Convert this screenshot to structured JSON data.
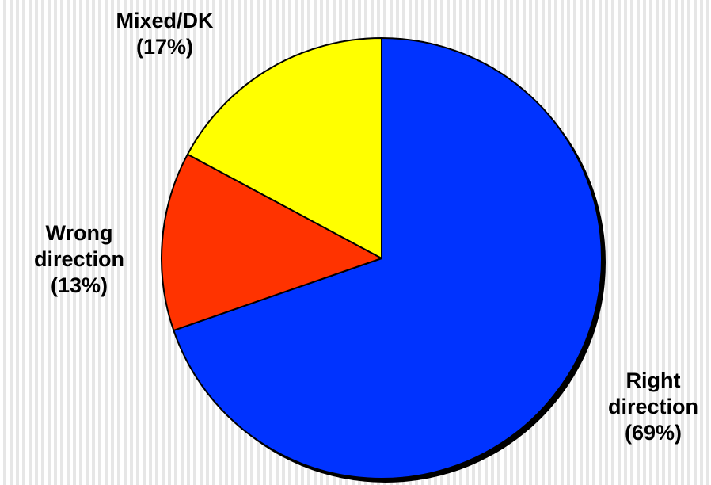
{
  "chart_data": {
    "type": "pie",
    "slices": [
      {
        "label_line1": "Right",
        "label_line2": "direction",
        "pct_text": "(69%)",
        "value": 69,
        "color": "#0033ff"
      },
      {
        "label_line1": "Wrong",
        "label_line2": "direction",
        "pct_text": "(13%)",
        "value": 13,
        "color": "#ff3300"
      },
      {
        "label_line1": "Mixed/DK",
        "label_line2": "",
        "pct_text": "(17%)",
        "value": 17,
        "color": "#ffff00"
      }
    ],
    "start_position": "12 o'clock",
    "direction": "clockwise",
    "legend": "none",
    "shadow": true
  }
}
